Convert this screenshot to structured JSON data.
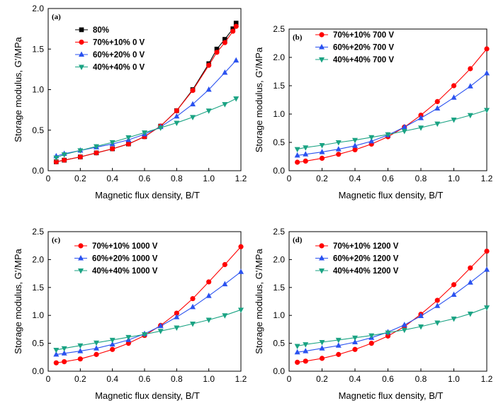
{
  "chart_data": [
    {
      "type": "line",
      "panel": "(a)",
      "xlabel": "Magnetic flux density, B/T",
      "ylabel": "Storage modulus, G'/MPa",
      "xlim": [
        0,
        1.2
      ],
      "ylim": [
        0,
        2.0
      ],
      "xticks": [
        0,
        0.2,
        0.4,
        0.6,
        0.8,
        1.0,
        1.2
      ],
      "yticks": [
        0,
        0.5,
        1.0,
        1.5,
        2.0
      ],
      "xtick_labels": [
        "0",
        "0.2",
        "0.4",
        "0.6",
        "0.8",
        "1.0",
        "1.2"
      ],
      "ytick_labels": [
        "0.0",
        "0.5",
        "1.0",
        "1.5",
        "2.0"
      ],
      "legend_position": "top-left",
      "series": [
        {
          "name": "80%",
          "marker": "square",
          "color": "#000000",
          "x": [
            0.05,
            0.1,
            0.2,
            0.3,
            0.4,
            0.5,
            0.6,
            0.7,
            0.8,
            0.9,
            1.0,
            1.05,
            1.1,
            1.15,
            1.17
          ],
          "y": [
            0.11,
            0.13,
            0.17,
            0.22,
            0.27,
            0.33,
            0.42,
            0.55,
            0.74,
            1.0,
            1.32,
            1.5,
            1.62,
            1.75,
            1.82
          ]
        },
        {
          "name": "70%+10% 0 V",
          "marker": "circle",
          "color": "#ff0000",
          "x": [
            0.05,
            0.1,
            0.2,
            0.3,
            0.4,
            0.5,
            0.6,
            0.7,
            0.8,
            0.9,
            1.0,
            1.05,
            1.1,
            1.15,
            1.17
          ],
          "y": [
            0.11,
            0.13,
            0.17,
            0.22,
            0.27,
            0.33,
            0.42,
            0.55,
            0.74,
            0.99,
            1.3,
            1.46,
            1.58,
            1.72,
            1.78
          ]
        },
        {
          "name": "60%+20% 0 V",
          "marker": "triangle-up",
          "color": "#2a52f0",
          "x": [
            0.05,
            0.1,
            0.2,
            0.3,
            0.4,
            0.5,
            0.6,
            0.7,
            0.8,
            0.9,
            1.0,
            1.1,
            1.17
          ],
          "y": [
            0.18,
            0.21,
            0.25,
            0.29,
            0.33,
            0.38,
            0.45,
            0.54,
            0.67,
            0.82,
            1.0,
            1.21,
            1.36
          ]
        },
        {
          "name": "40%+40% 0 V",
          "marker": "triangle-down",
          "color": "#1aa383",
          "x": [
            0.05,
            0.1,
            0.2,
            0.3,
            0.4,
            0.5,
            0.6,
            0.7,
            0.8,
            0.9,
            1.0,
            1.1,
            1.17
          ],
          "y": [
            0.16,
            0.2,
            0.25,
            0.3,
            0.35,
            0.41,
            0.47,
            0.53,
            0.59,
            0.66,
            0.74,
            0.82,
            0.89
          ]
        }
      ]
    },
    {
      "type": "line",
      "panel": "(b)",
      "xlabel": "Magnetic flux density, B/T",
      "ylabel": "Storage modulus, G'/MPa",
      "xlim": [
        0,
        1.2
      ],
      "ylim": [
        0,
        2.5
      ],
      "xticks": [
        0,
        0.2,
        0.4,
        0.6,
        0.8,
        1.0,
        1.2
      ],
      "yticks": [
        0,
        0.5,
        1.0,
        1.5,
        2.0,
        2.5
      ],
      "xtick_labels": [
        "0",
        "0.2",
        "0.4",
        "0.6",
        "0.8",
        "1.0",
        "1.2"
      ],
      "ytick_labels": [
        "0.0",
        "0.5",
        "1.0",
        "1.5",
        "2.0",
        "2.5"
      ],
      "legend_position": "top-left",
      "series": [
        {
          "name": "70%+10% 700 V",
          "marker": "circle",
          "color": "#ff0000",
          "x": [
            0.05,
            0.1,
            0.2,
            0.3,
            0.4,
            0.5,
            0.6,
            0.7,
            0.8,
            0.9,
            1.0,
            1.1,
            1.2
          ],
          "y": [
            0.15,
            0.17,
            0.22,
            0.29,
            0.37,
            0.47,
            0.6,
            0.77,
            0.98,
            1.22,
            1.5,
            1.8,
            2.15
          ]
        },
        {
          "name": "60%+20% 700 V",
          "marker": "triangle-up",
          "color": "#2a52f0",
          "x": [
            0.05,
            0.1,
            0.2,
            0.3,
            0.4,
            0.5,
            0.6,
            0.7,
            0.8,
            0.9,
            1.0,
            1.1,
            1.2
          ],
          "y": [
            0.27,
            0.29,
            0.33,
            0.38,
            0.44,
            0.52,
            0.63,
            0.77,
            0.93,
            1.1,
            1.29,
            1.49,
            1.72
          ]
        },
        {
          "name": "40%+40% 700 V",
          "marker": "triangle-down",
          "color": "#1aa383",
          "x": [
            0.05,
            0.1,
            0.2,
            0.3,
            0.4,
            0.5,
            0.6,
            0.7,
            0.8,
            0.9,
            1.0,
            1.1,
            1.2
          ],
          "y": [
            0.38,
            0.41,
            0.45,
            0.5,
            0.54,
            0.59,
            0.64,
            0.7,
            0.76,
            0.83,
            0.9,
            0.98,
            1.07
          ]
        }
      ]
    },
    {
      "type": "line",
      "panel": "(c)",
      "xlabel": "Magnetic flux density, B/T",
      "ylabel": "Storage modulus, G'/MPa",
      "xlim": [
        0,
        1.2
      ],
      "ylim": [
        0,
        2.5
      ],
      "xticks": [
        0,
        0.2,
        0.4,
        0.6,
        0.8,
        1.0,
        1.2
      ],
      "yticks": [
        0,
        0.5,
        1.0,
        1.5,
        2.0,
        2.5
      ],
      "xtick_labels": [
        "0",
        "0.2",
        "0.4",
        "0.6",
        "0.8",
        "1.0",
        "1.2"
      ],
      "ytick_labels": [
        "0.0",
        "0.5",
        "1.0",
        "1.5",
        "2.0",
        "2.5"
      ],
      "legend_position": "top-left",
      "series": [
        {
          "name": "70%+10% 1000 V",
          "marker": "circle",
          "color": "#ff0000",
          "x": [
            0.05,
            0.1,
            0.2,
            0.3,
            0.4,
            0.5,
            0.6,
            0.7,
            0.8,
            0.9,
            1.0,
            1.1,
            1.2
          ],
          "y": [
            0.15,
            0.17,
            0.22,
            0.3,
            0.39,
            0.5,
            0.64,
            0.82,
            1.04,
            1.3,
            1.6,
            1.91,
            2.23
          ]
        },
        {
          "name": "60%+20% 1000 V",
          "marker": "triangle-up",
          "color": "#2a52f0",
          "x": [
            0.05,
            0.1,
            0.2,
            0.3,
            0.4,
            0.5,
            0.6,
            0.7,
            0.8,
            0.9,
            1.0,
            1.1,
            1.2
          ],
          "y": [
            0.3,
            0.32,
            0.36,
            0.41,
            0.48,
            0.56,
            0.67,
            0.81,
            0.97,
            1.15,
            1.35,
            1.56,
            1.78
          ]
        },
        {
          "name": "40%+40% 1000 V",
          "marker": "triangle-down",
          "color": "#1aa383",
          "x": [
            0.05,
            0.1,
            0.2,
            0.3,
            0.4,
            0.5,
            0.6,
            0.7,
            0.8,
            0.9,
            1.0,
            1.1,
            1.2
          ],
          "y": [
            0.38,
            0.41,
            0.46,
            0.51,
            0.56,
            0.61,
            0.66,
            0.72,
            0.78,
            0.85,
            0.92,
            1.0,
            1.1
          ]
        }
      ]
    },
    {
      "type": "line",
      "panel": "(d)",
      "xlabel": "Magnetic flux density, B/T",
      "ylabel": "Storage modulus, G'/MPa",
      "xlim": [
        0,
        1.2
      ],
      "ylim": [
        0,
        2.5
      ],
      "xticks": [
        0,
        0.2,
        0.4,
        0.6,
        0.8,
        1.0,
        1.2
      ],
      "yticks": [
        0,
        0.5,
        1.0,
        1.5,
        2.0,
        2.5
      ],
      "xtick_labels": [
        "0",
        "0.2",
        "0.4",
        "0.6",
        "0.8",
        "1.0",
        "1.2"
      ],
      "ytick_labels": [
        "0.0",
        "0.5",
        "1.0",
        "1.5",
        "2.0",
        "2.5"
      ],
      "legend_position": "top-left",
      "series": [
        {
          "name": "70%+10% 1200 V",
          "marker": "circle",
          "color": "#ff0000",
          "x": [
            0.05,
            0.1,
            0.2,
            0.3,
            0.4,
            0.5,
            0.6,
            0.7,
            0.8,
            0.9,
            1.0,
            1.1,
            1.2
          ],
          "y": [
            0.16,
            0.18,
            0.23,
            0.3,
            0.39,
            0.5,
            0.63,
            0.8,
            1.02,
            1.27,
            1.55,
            1.85,
            2.15
          ]
        },
        {
          "name": "60%+20% 1200 V",
          "marker": "triangle-up",
          "color": "#2a52f0",
          "x": [
            0.05,
            0.1,
            0.2,
            0.3,
            0.4,
            0.5,
            0.6,
            0.7,
            0.8,
            0.9,
            1.0,
            1.1,
            1.2
          ],
          "y": [
            0.34,
            0.36,
            0.41,
            0.46,
            0.52,
            0.6,
            0.7,
            0.83,
            0.99,
            1.17,
            1.37,
            1.59,
            1.82
          ]
        },
        {
          "name": "40%+40% 1200 V",
          "marker": "triangle-down",
          "color": "#1aa383",
          "x": [
            0.05,
            0.1,
            0.2,
            0.3,
            0.4,
            0.5,
            0.6,
            0.7,
            0.8,
            0.9,
            1.0,
            1.1,
            1.2
          ],
          "y": [
            0.45,
            0.48,
            0.52,
            0.56,
            0.6,
            0.64,
            0.69,
            0.74,
            0.8,
            0.87,
            0.94,
            1.03,
            1.14
          ]
        }
      ]
    }
  ]
}
